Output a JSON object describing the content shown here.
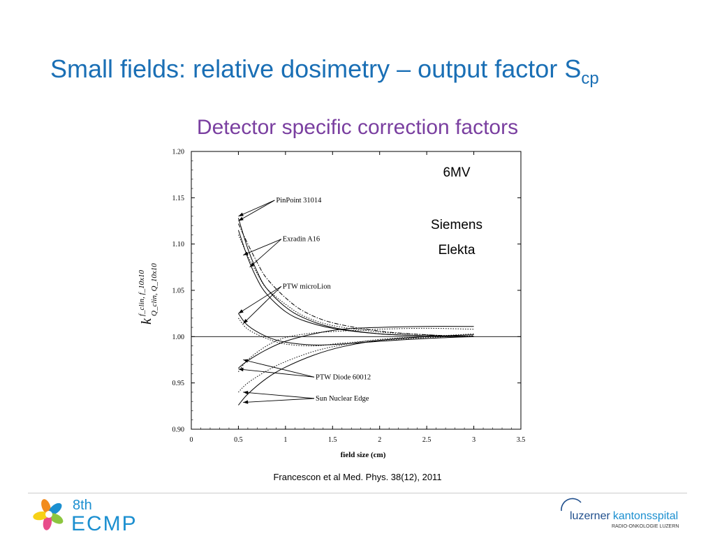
{
  "slide": {
    "title_main": "Small fields: relative dosimetry – output factor S",
    "title_sub": "cp",
    "subtitle": "Detector specific correction factors",
    "caption": "Francescon et al Med. Phys. 38(12), 2011"
  },
  "logos": {
    "ecmp_top": "8th",
    "ecmp_bottom": "ECMP",
    "luks_name_a": "luzerner",
    "luks_name_b": "kantonsspital",
    "luks_dept": "RADIO-ONKOLOGIE LUZERN"
  },
  "colors": {
    "title": "#1a6fb5",
    "subtitle": "#7a3fa0",
    "ecmp": "#1b8fd0",
    "luks": "#1f4e8c"
  },
  "chart_data": {
    "type": "line",
    "xlabel": "field size (cm)",
    "ylabel_main": "k",
    "ylabel_super": "f_clin, f_10x10",
    "ylabel_sub": "Q_clin, Q_10x10",
    "xlim": [
      0,
      3.5
    ],
    "ylim": [
      0.9,
      1.2
    ],
    "xticks": [
      0,
      0.5,
      1,
      1.5,
      2,
      2.5,
      3,
      3.5
    ],
    "xtick_labels": [
      "0",
      "0.5",
      "1",
      "1.5",
      "2",
      "2.5",
      "3",
      "3.5"
    ],
    "yticks": [
      0.9,
      0.95,
      1.0,
      1.05,
      1.1,
      1.15,
      1.2
    ],
    "ytick_labels": [
      "0.90",
      "0.95",
      "1.00",
      "1.05",
      "1.10",
      "1.15",
      "1.20"
    ],
    "annotations_text": [
      "6MV",
      "Siemens",
      "Elekta"
    ],
    "reference_line": 1.0,
    "series_labels": [
      {
        "text": "PinPoint 31014",
        "x": 0.9,
        "y": 1.145,
        "targets": [
          [
            0.5,
            1.13
          ],
          [
            0.5,
            1.125
          ]
        ]
      },
      {
        "text": "Exradin A16",
        "x": 0.97,
        "y": 1.103,
        "targets": [
          [
            0.55,
            1.088
          ],
          [
            0.62,
            1.075
          ]
        ]
      },
      {
        "text": "PTW microLion",
        "x": 0.97,
        "y": 1.052,
        "targets": [
          [
            0.5,
            1.025
          ],
          [
            0.55,
            1.014
          ]
        ]
      },
      {
        "text": "PTW Diode 60012",
        "x": 1.32,
        "y": 0.954,
        "targets": [
          [
            0.55,
            0.975
          ],
          [
            0.5,
            0.965
          ]
        ]
      },
      {
        "text": "Sun Nuclear Edge",
        "x": 1.32,
        "y": 0.931,
        "targets": [
          [
            0.55,
            0.94
          ],
          [
            0.55,
            0.929
          ]
        ]
      }
    ],
    "series": [
      {
        "style": "solid",
        "x": [
          0.5,
          0.6,
          0.7,
          0.8,
          1.0,
          1.2,
          1.5,
          2.0,
          2.5,
          3.0
        ],
        "y": [
          1.128,
          1.095,
          1.07,
          1.052,
          1.032,
          1.02,
          1.01,
          1.003,
          1.001,
          1.0
        ]
      },
      {
        "style": "dashdot",
        "x": [
          0.5,
          0.6,
          0.7,
          0.8,
          1.0,
          1.2,
          1.5,
          2.0,
          2.5,
          3.0
        ],
        "y": [
          1.122,
          1.1,
          1.08,
          1.063,
          1.042,
          1.027,
          1.015,
          1.006,
          1.002,
          1.0
        ]
      },
      {
        "style": "solid",
        "x": [
          0.5,
          0.6,
          0.7,
          0.8,
          1.0,
          1.2,
          1.5,
          2.0,
          2.5,
          3.0
        ],
        "y": [
          1.115,
          1.085,
          1.062,
          1.046,
          1.027,
          1.017,
          1.009,
          1.003,
          1.001,
          1.0
        ]
      },
      {
        "style": "dotted",
        "x": [
          0.5,
          0.6,
          0.7,
          0.8,
          1.0,
          1.2,
          1.5,
          2.0,
          2.5,
          3.0
        ],
        "y": [
          1.11,
          1.087,
          1.068,
          1.052,
          1.035,
          1.022,
          1.012,
          1.005,
          1.002,
          1.0
        ]
      },
      {
        "style": "solid",
        "x": [
          0.5,
          0.6,
          0.8,
          1.0,
          1.3,
          1.6,
          2.0,
          2.5,
          3.0
        ],
        "y": [
          1.025,
          1.012,
          1.0,
          0.994,
          0.991,
          0.992,
          0.995,
          0.998,
          1.0
        ]
      },
      {
        "style": "dotted",
        "x": [
          0.5,
          0.6,
          0.8,
          1.0,
          1.3,
          1.6,
          2.0,
          2.5,
          3.0
        ],
        "y": [
          1.02,
          1.008,
          0.998,
          0.992,
          0.99,
          0.993,
          0.996,
          0.999,
          1.001
        ]
      },
      {
        "style": "solid",
        "x": [
          0.5,
          0.6,
          0.8,
          1.0,
          1.3,
          1.6,
          2.0,
          2.5,
          3.0
        ],
        "y": [
          0.966,
          0.974,
          0.986,
          0.995,
          1.003,
          1.008,
          1.01,
          1.011,
          1.011
        ]
      },
      {
        "style": "dotted",
        "x": [
          0.5,
          0.6,
          0.8,
          1.0,
          1.3,
          1.6,
          2.0,
          2.5,
          3.0
        ],
        "y": [
          0.962,
          0.975,
          0.99,
          0.999,
          1.004,
          1.006,
          1.008,
          1.009,
          1.008
        ]
      },
      {
        "style": "solid",
        "x": [
          0.5,
          0.6,
          0.8,
          1.0,
          1.3,
          1.6,
          2.0,
          2.5,
          3.0
        ],
        "y": [
          0.926,
          0.938,
          0.955,
          0.967,
          0.98,
          0.989,
          0.996,
          1.0,
          1.002
        ]
      },
      {
        "style": "dotted",
        "x": [
          0.5,
          0.6,
          0.8,
          1.0,
          1.3,
          1.6,
          2.0,
          2.5,
          3.0
        ],
        "y": [
          0.94,
          0.95,
          0.963,
          0.973,
          0.984,
          0.991,
          0.997,
          1.0,
          1.003
        ]
      }
    ]
  }
}
